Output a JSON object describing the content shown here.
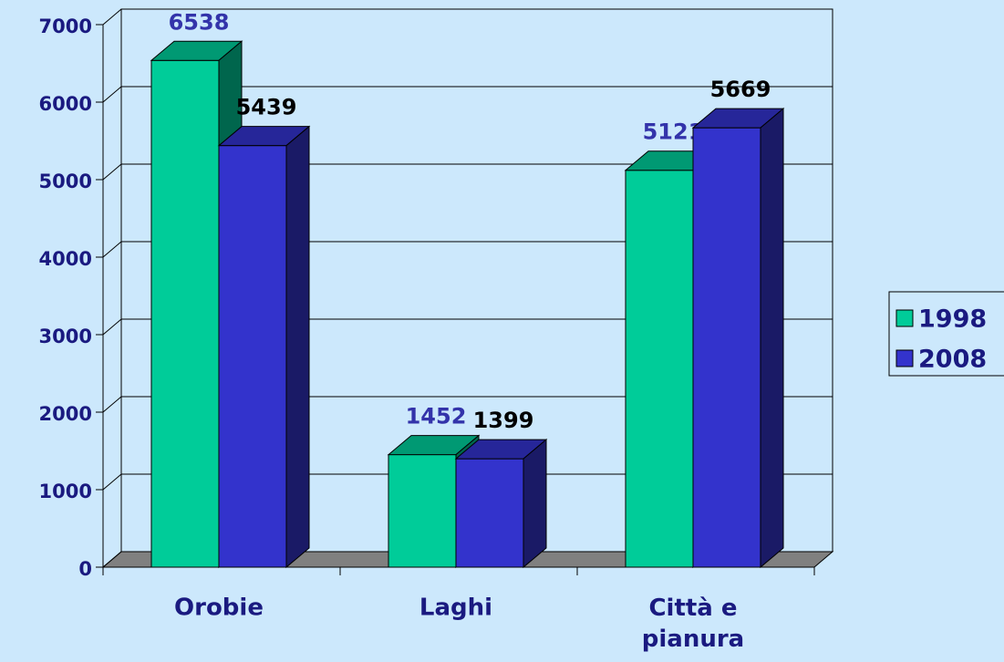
{
  "chart_data": {
    "type": "bar3d",
    "categories": [
      "Orobie",
      "Laghi",
      "Città e pianura"
    ],
    "series": [
      {
        "name": "1998",
        "color": "#00cc99",
        "label_color": "#3333aa",
        "values": [
          6538,
          1452,
          5121
        ]
      },
      {
        "name": "2008",
        "color": "#3333cc",
        "label_color": "#000000",
        "values": [
          5439,
          1399,
          5669
        ]
      }
    ],
    "ylim": [
      0,
      7000
    ],
    "yticks": [
      0,
      1000,
      2000,
      3000,
      4000,
      5000,
      6000,
      7000
    ],
    "grid": true,
    "legend": "right"
  }
}
